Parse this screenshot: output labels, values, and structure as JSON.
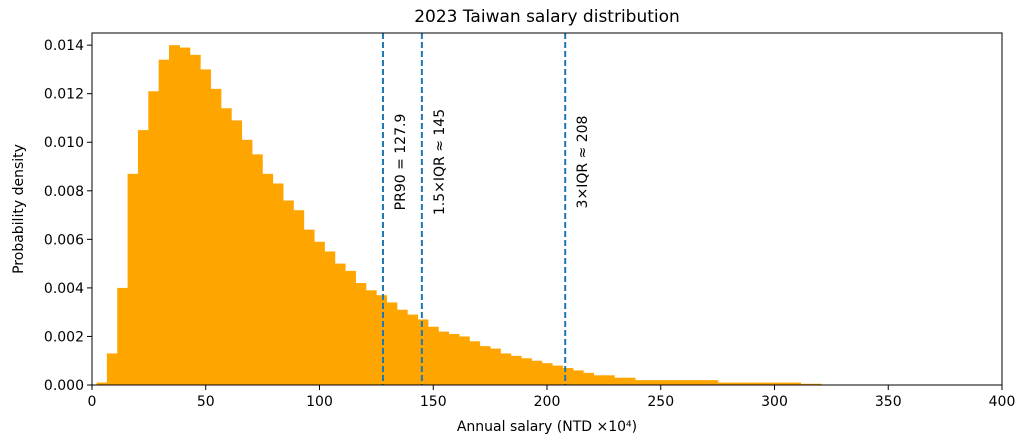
{
  "chart_data": {
    "type": "bar",
    "title": "2023 Taiwan salary distribution",
    "xlabel": "Annual salary (NTD ×10⁴)",
    "ylabel": "Probability density",
    "xlim": [
      0,
      400
    ],
    "ylim": [
      0,
      0.0145
    ],
    "x_ticks": [
      0,
      50,
      100,
      150,
      200,
      250,
      300,
      350,
      400
    ],
    "x_tick_labels": [
      "0",
      "50",
      "100",
      "150",
      "200",
      "250",
      "300",
      "350",
      "400"
    ],
    "y_ticks": [
      0,
      0.002,
      0.004,
      0.006,
      0.008,
      0.01,
      0.012,
      0.014
    ],
    "y_tick_labels": [
      "0.000",
      "0.002",
      "0.004",
      "0.006",
      "0.008",
      "0.010",
      "0.012",
      "0.014"
    ],
    "grid": false,
    "bar_color": "#ffa500",
    "bin_width": 4.55,
    "bin_edges_start": 2,
    "density": [
      0.0001,
      0.0013,
      0.004,
      0.0087,
      0.0105,
      0.0121,
      0.0134,
      0.014,
      0.0139,
      0.0136,
      0.013,
      0.0122,
      0.0114,
      0.0109,
      0.0101,
      0.0095,
      0.0087,
      0.0083,
      0.0076,
      0.0072,
      0.0064,
      0.0059,
      0.0055,
      0.005,
      0.0047,
      0.0042,
      0.0039,
      0.0037,
      0.0034,
      0.0031,
      0.0029,
      0.0027,
      0.0024,
      0.0022,
      0.0021,
      0.002,
      0.0018,
      0.0016,
      0.0015,
      0.0013,
      0.0012,
      0.0011,
      0.001,
      0.0009,
      0.0008,
      0.0007,
      0.0006,
      0.0005,
      0.0004,
      0.0004,
      0.0003,
      0.0003,
      0.0002,
      0.0002,
      0.0002,
      0.0002,
      0.0002,
      0.0002,
      0.0002,
      0.0002,
      0.0001,
      0.0001,
      0.0001,
      0.0001,
      0.0001,
      0.0001,
      0.0001,
      0.0001,
      5e-05,
      5e-05
    ],
    "reference_lines": [
      {
        "x": 127.9,
        "label": "PR90 = 127.9",
        "color": "#1f77b4",
        "style": "dashed"
      },
      {
        "x": 145,
        "label": "1.5×IQR ≈ 145",
        "color": "#1f77b4",
        "style": "dashed"
      },
      {
        "x": 208,
        "label": "3×IQR ≈ 208",
        "color": "#1f77b4",
        "style": "dashed"
      }
    ]
  }
}
